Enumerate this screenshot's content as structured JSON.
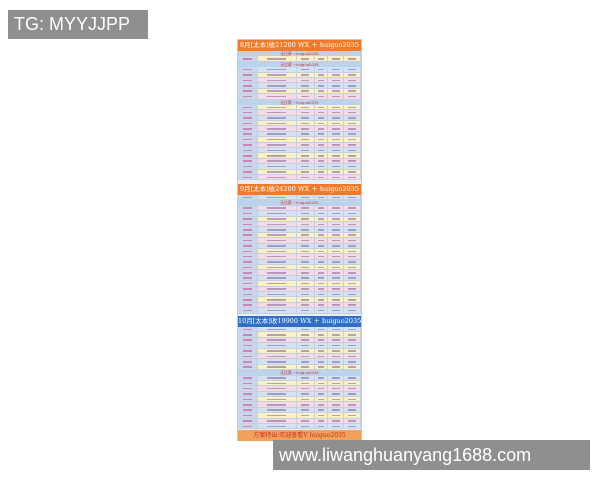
{
  "watermarks": {
    "top_left": "TG: MYYJJPP",
    "bottom_right": "www.liwanghuanyang1688.com"
  },
  "sheet": {
    "sections": [
      {
        "title": "8月[太本]收21200 WX ＋ huiguo2035",
        "color": "#ef7a2a"
      },
      {
        "title": "9月[太本]收24200 WX ＋ huiguo2035",
        "color": "#ef7a2a"
      },
      {
        "title": "10月[太本]收19900 WX ＋ huiguo2035",
        "color": "#2f6fc6"
      }
    ],
    "separator_label": "无比赛 ~huiguo2035",
    "footer": "方案特出·欢迎查看V huiguo2035",
    "row_colors": [
      "#d3e3f5",
      "#fbf2c4",
      "#f6dbe6"
    ]
  }
}
